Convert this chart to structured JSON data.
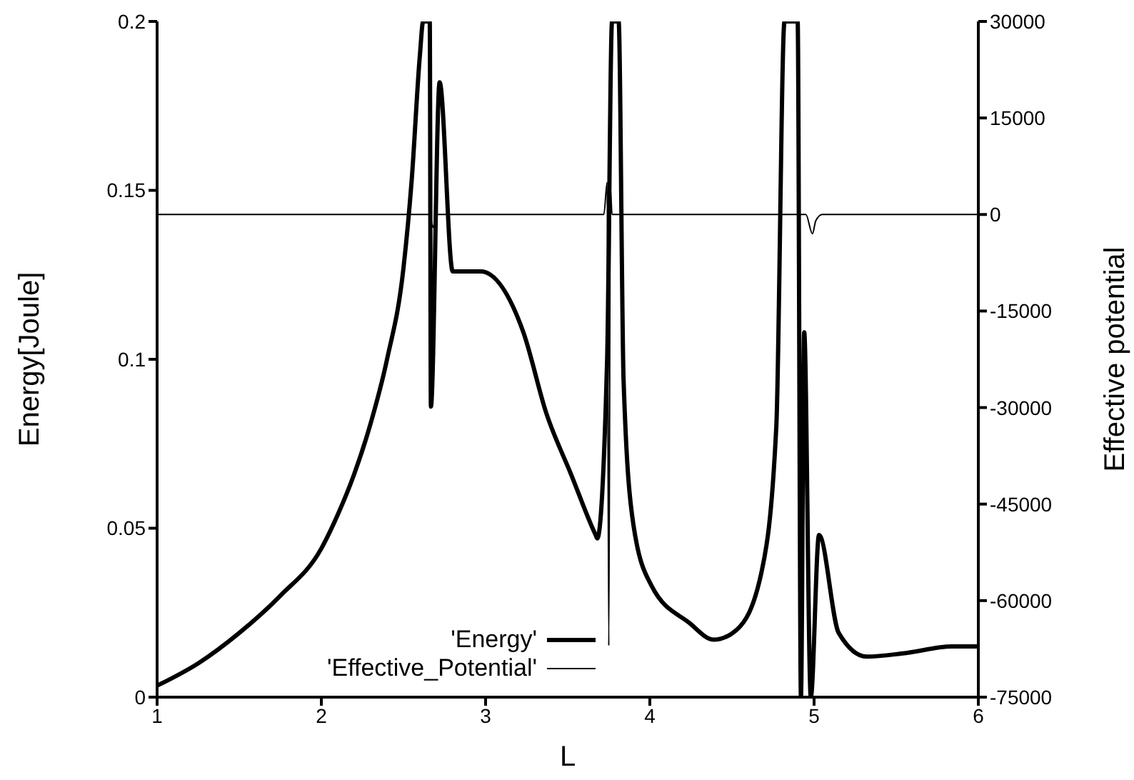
{
  "chart_data": {
    "type": "line",
    "xlabel": "L",
    "ylabel": "Energy[Joule]",
    "y2label": "Effective potential",
    "xlim": [
      1,
      6
    ],
    "xticks": [
      1,
      2,
      3,
      4,
      5,
      6
    ],
    "ylim": [
      0,
      0.2
    ],
    "yticks": [
      0,
      0.05,
      0.1,
      0.15,
      0.2
    ],
    "y2lim": [
      -75000,
      30000
    ],
    "y2ticks": [
      -75000,
      -60000,
      -45000,
      -30000,
      -15000,
      0,
      15000,
      30000
    ],
    "legend": "bottom left",
    "marker": "none",
    "series": [
      {
        "name": "'Energy'",
        "color": "#000000",
        "x": [
          1,
          1.25,
          1.5,
          1.75,
          2,
          2.1,
          2.2,
          2.3,
          2.4,
          2.5,
          2.55,
          2.6,
          2.62,
          2.66,
          2.667,
          2.72,
          2.8,
          2.97,
          3.23,
          3.37,
          3.52,
          3.67,
          3.68,
          3.74,
          3.77,
          3.81,
          3.84,
          3.9,
          4.01,
          4.24,
          4.39,
          4.53,
          4.68,
          4.77,
          4.82,
          4.9,
          4.92,
          4.94,
          4.98,
          5.03,
          5.15,
          5.32,
          5.55,
          5.84,
          6
        ],
        "values": [
          0.0034,
          0.01,
          0.019,
          0.03,
          0.044,
          0.054,
          0.066,
          0.081,
          0.1,
          0.127,
          0.153,
          0.19,
          0.2,
          0.2,
          0.086,
          0.182,
          0.126,
          0.126,
          0.108,
          0.084,
          0.066,
          0.048,
          0.047,
          0.1,
          0.2,
          0.2,
          0.094,
          0.051,
          0.033,
          0.022,
          0.017,
          0.02,
          0.037,
          0.08,
          0.2,
          0.2,
          0,
          0.108,
          0,
          0.048,
          0.019,
          0.012,
          0.013,
          0.015,
          0.015
        ]
      },
      {
        "name": "'Effective_Potential'",
        "color": "#000000",
        "axis": "y2",
        "x": [
          1,
          2.6,
          2.66,
          2.68,
          2.7,
          3.72,
          3.74,
          3.75,
          3.76,
          3.77,
          4.85,
          4.95,
          4.99,
          5.01,
          5.05,
          6
        ],
        "values": [
          0,
          0,
          0,
          -2000,
          0,
          0,
          5000,
          -67000,
          4000,
          0,
          0,
          0,
          -3000,
          -1000,
          0,
          0
        ]
      }
    ]
  }
}
